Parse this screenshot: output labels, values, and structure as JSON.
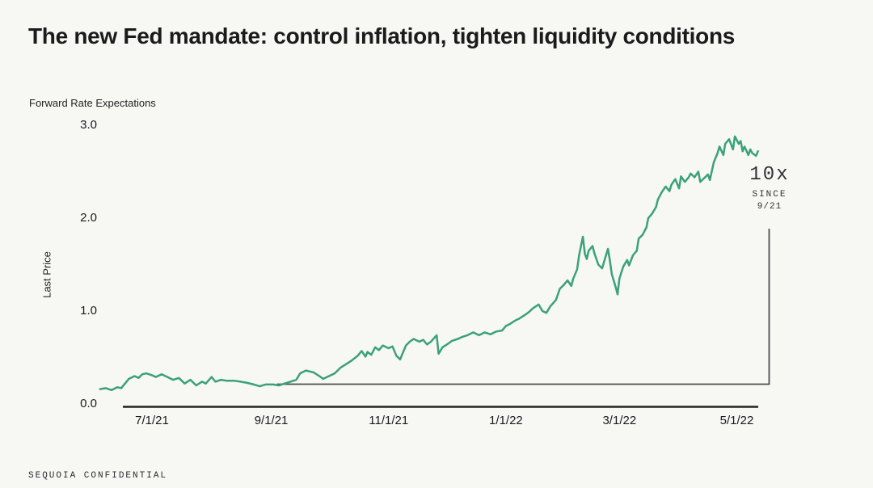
{
  "header": {
    "title": "The new Fed mandate: control inflation, tighten liquidity conditions"
  },
  "annotation": {
    "line1": "10x",
    "line2": "SINCE",
    "line3": "9/21"
  },
  "footer": {
    "text": "SEQUOIA CONFIDENTIAL"
  },
  "colors": {
    "background": "#f7f7f4",
    "line": "#3aa17b",
    "axis": "#222222",
    "bracket": "#4d4d4d",
    "title_text": "#1b1b1b"
  },
  "chart_data": {
    "type": "line",
    "title": "Forward Rate Expectations",
    "xlabel": "",
    "ylabel": "Last Price",
    "ylim": [
      0.0,
      3.0
    ],
    "grid": false,
    "legend": null,
    "y_ticks": [
      0.0,
      1.0,
      2.0,
      3.0
    ],
    "y_tick_labels": [
      "0.0",
      "1.0",
      "2.0",
      "3.0"
    ],
    "x_tick_labels": [
      "7/1/21",
      "9/1/21",
      "11/1/21",
      "1/1/22",
      "3/1/22",
      "5/1/22"
    ],
    "x_tick_dates": [
      "2021-07-01",
      "2021-09-01",
      "2021-11-01",
      "2022-01-01",
      "2022-03-01",
      "2022-05-01"
    ],
    "annotation": {
      "text": "10x SINCE 9/21",
      "anchor_date": "2021-09-04"
    },
    "series": [
      {
        "name": "Forward Rate Expectations",
        "color": "#3aa17b",
        "points": [
          [
            "2021-06-04",
            0.16
          ],
          [
            "2021-06-07",
            0.17
          ],
          [
            "2021-06-10",
            0.15
          ],
          [
            "2021-06-13",
            0.18
          ],
          [
            "2021-06-15",
            0.17
          ],
          [
            "2021-06-17",
            0.22
          ],
          [
            "2021-06-19",
            0.27
          ],
          [
            "2021-06-22",
            0.3
          ],
          [
            "2021-06-24",
            0.28
          ],
          [
            "2021-06-26",
            0.32
          ],
          [
            "2021-06-28",
            0.33
          ],
          [
            "2021-07-01",
            0.31
          ],
          [
            "2021-07-03",
            0.29
          ],
          [
            "2021-07-06",
            0.32
          ],
          [
            "2021-07-08",
            0.3
          ],
          [
            "2021-07-10",
            0.28
          ],
          [
            "2021-07-12",
            0.26
          ],
          [
            "2021-07-15",
            0.28
          ],
          [
            "2021-07-18",
            0.22
          ],
          [
            "2021-07-21",
            0.26
          ],
          [
            "2021-07-24",
            0.2
          ],
          [
            "2021-07-27",
            0.24
          ],
          [
            "2021-07-29",
            0.22
          ],
          [
            "2021-08-01",
            0.29
          ],
          [
            "2021-08-03",
            0.24
          ],
          [
            "2021-08-06",
            0.26
          ],
          [
            "2021-08-09",
            0.25
          ],
          [
            "2021-08-13",
            0.25
          ],
          [
            "2021-08-16",
            0.24
          ],
          [
            "2021-08-19",
            0.23
          ],
          [
            "2021-08-23",
            0.21
          ],
          [
            "2021-08-26",
            0.19
          ],
          [
            "2021-08-29",
            0.21
          ],
          [
            "2021-09-02",
            0.21
          ],
          [
            "2021-09-05",
            0.2
          ],
          [
            "2021-09-08",
            0.22
          ],
          [
            "2021-09-11",
            0.24
          ],
          [
            "2021-09-14",
            0.26
          ],
          [
            "2021-09-16",
            0.33
          ],
          [
            "2021-09-19",
            0.36
          ],
          [
            "2021-09-23",
            0.34
          ],
          [
            "2021-09-26",
            0.3
          ],
          [
            "2021-09-28",
            0.27
          ],
          [
            "2021-10-01",
            0.3
          ],
          [
            "2021-10-04",
            0.33
          ],
          [
            "2021-10-07",
            0.39
          ],
          [
            "2021-10-10",
            0.43
          ],
          [
            "2021-10-13",
            0.47
          ],
          [
            "2021-10-16",
            0.52
          ],
          [
            "2021-10-18",
            0.57
          ],
          [
            "2021-10-20",
            0.51
          ],
          [
            "2021-10-21",
            0.56
          ],
          [
            "2021-10-23",
            0.53
          ],
          [
            "2021-10-25",
            0.61
          ],
          [
            "2021-10-27",
            0.58
          ],
          [
            "2021-10-29",
            0.63
          ],
          [
            "2021-11-01",
            0.6
          ],
          [
            "2021-11-03",
            0.62
          ],
          [
            "2021-11-05",
            0.52
          ],
          [
            "2021-11-07",
            0.48
          ],
          [
            "2021-11-10",
            0.63
          ],
          [
            "2021-11-12",
            0.67
          ],
          [
            "2021-11-14",
            0.7
          ],
          [
            "2021-11-17",
            0.67
          ],
          [
            "2021-11-19",
            0.69
          ],
          [
            "2021-11-21",
            0.64
          ],
          [
            "2021-11-23",
            0.67
          ],
          [
            "2021-11-26",
            0.74
          ],
          [
            "2021-11-27",
            0.54
          ],
          [
            "2021-11-29",
            0.61
          ],
          [
            "2021-12-02",
            0.65
          ],
          [
            "2021-12-04",
            0.68
          ],
          [
            "2021-12-07",
            0.7
          ],
          [
            "2021-12-09",
            0.72
          ],
          [
            "2021-12-12",
            0.74
          ],
          [
            "2021-12-15",
            0.77
          ],
          [
            "2021-12-18",
            0.74
          ],
          [
            "2021-12-21",
            0.77
          ],
          [
            "2021-12-24",
            0.75
          ],
          [
            "2021-12-27",
            0.78
          ],
          [
            "2021-12-30",
            0.79
          ],
          [
            "2022-01-01",
            0.84
          ],
          [
            "2022-01-03",
            0.86
          ],
          [
            "2022-01-06",
            0.9
          ],
          [
            "2022-01-08",
            0.92
          ],
          [
            "2022-01-11",
            0.96
          ],
          [
            "2022-01-13",
            0.99
          ],
          [
            "2022-01-15",
            1.03
          ],
          [
            "2022-01-18",
            1.07
          ],
          [
            "2022-01-20",
            1.0
          ],
          [
            "2022-01-22",
            0.98
          ],
          [
            "2022-01-24",
            1.05
          ],
          [
            "2022-01-27",
            1.12
          ],
          [
            "2022-01-29",
            1.24
          ],
          [
            "2022-01-31",
            1.28
          ],
          [
            "2022-02-02",
            1.33
          ],
          [
            "2022-02-04",
            1.27
          ],
          [
            "2022-02-05",
            1.35
          ],
          [
            "2022-02-07",
            1.45
          ],
          [
            "2022-02-08",
            1.6
          ],
          [
            "2022-02-10",
            1.8
          ],
          [
            "2022-02-11",
            1.62
          ],
          [
            "2022-02-12",
            1.56
          ],
          [
            "2022-02-13",
            1.65
          ],
          [
            "2022-02-15",
            1.7
          ],
          [
            "2022-02-16",
            1.62
          ],
          [
            "2022-02-18",
            1.5
          ],
          [
            "2022-02-20",
            1.46
          ],
          [
            "2022-02-21",
            1.53
          ],
          [
            "2022-02-23",
            1.67
          ],
          [
            "2022-02-24",
            1.55
          ],
          [
            "2022-02-25",
            1.4
          ],
          [
            "2022-02-27",
            1.26
          ],
          [
            "2022-02-28",
            1.18
          ],
          [
            "2022-03-01",
            1.35
          ],
          [
            "2022-03-03",
            1.48
          ],
          [
            "2022-03-05",
            1.55
          ],
          [
            "2022-03-06",
            1.49
          ],
          [
            "2022-03-08",
            1.6
          ],
          [
            "2022-03-10",
            1.65
          ],
          [
            "2022-03-11",
            1.78
          ],
          [
            "2022-03-13",
            1.82
          ],
          [
            "2022-03-15",
            1.9
          ],
          [
            "2022-03-16",
            2.0
          ],
          [
            "2022-03-18",
            2.05
          ],
          [
            "2022-03-20",
            2.12
          ],
          [
            "2022-03-21",
            2.2
          ],
          [
            "2022-03-23",
            2.28
          ],
          [
            "2022-03-25",
            2.34
          ],
          [
            "2022-03-27",
            2.29
          ],
          [
            "2022-03-28",
            2.36
          ],
          [
            "2022-03-30",
            2.42
          ],
          [
            "2022-04-01",
            2.32
          ],
          [
            "2022-04-02",
            2.45
          ],
          [
            "2022-04-04",
            2.39
          ],
          [
            "2022-04-06",
            2.44
          ],
          [
            "2022-04-07",
            2.48
          ],
          [
            "2022-04-09",
            2.44
          ],
          [
            "2022-04-11",
            2.5
          ],
          [
            "2022-04-12",
            2.39
          ],
          [
            "2022-04-14",
            2.43
          ],
          [
            "2022-04-16",
            2.47
          ],
          [
            "2022-04-17",
            2.41
          ],
          [
            "2022-04-19",
            2.6
          ],
          [
            "2022-04-21",
            2.7
          ],
          [
            "2022-04-22",
            2.77
          ],
          [
            "2022-04-24",
            2.68
          ],
          [
            "2022-04-25",
            2.8
          ],
          [
            "2022-04-27",
            2.85
          ],
          [
            "2022-04-29",
            2.74
          ],
          [
            "2022-04-30",
            2.88
          ],
          [
            "2022-05-02",
            2.8
          ],
          [
            "2022-05-03",
            2.83
          ],
          [
            "2022-05-04",
            2.72
          ],
          [
            "2022-05-05",
            2.77
          ],
          [
            "2022-05-07",
            2.68
          ],
          [
            "2022-05-08",
            2.74
          ],
          [
            "2022-05-09",
            2.7
          ],
          [
            "2022-05-11",
            2.67
          ],
          [
            "2022-05-12",
            2.72
          ]
        ]
      }
    ]
  }
}
